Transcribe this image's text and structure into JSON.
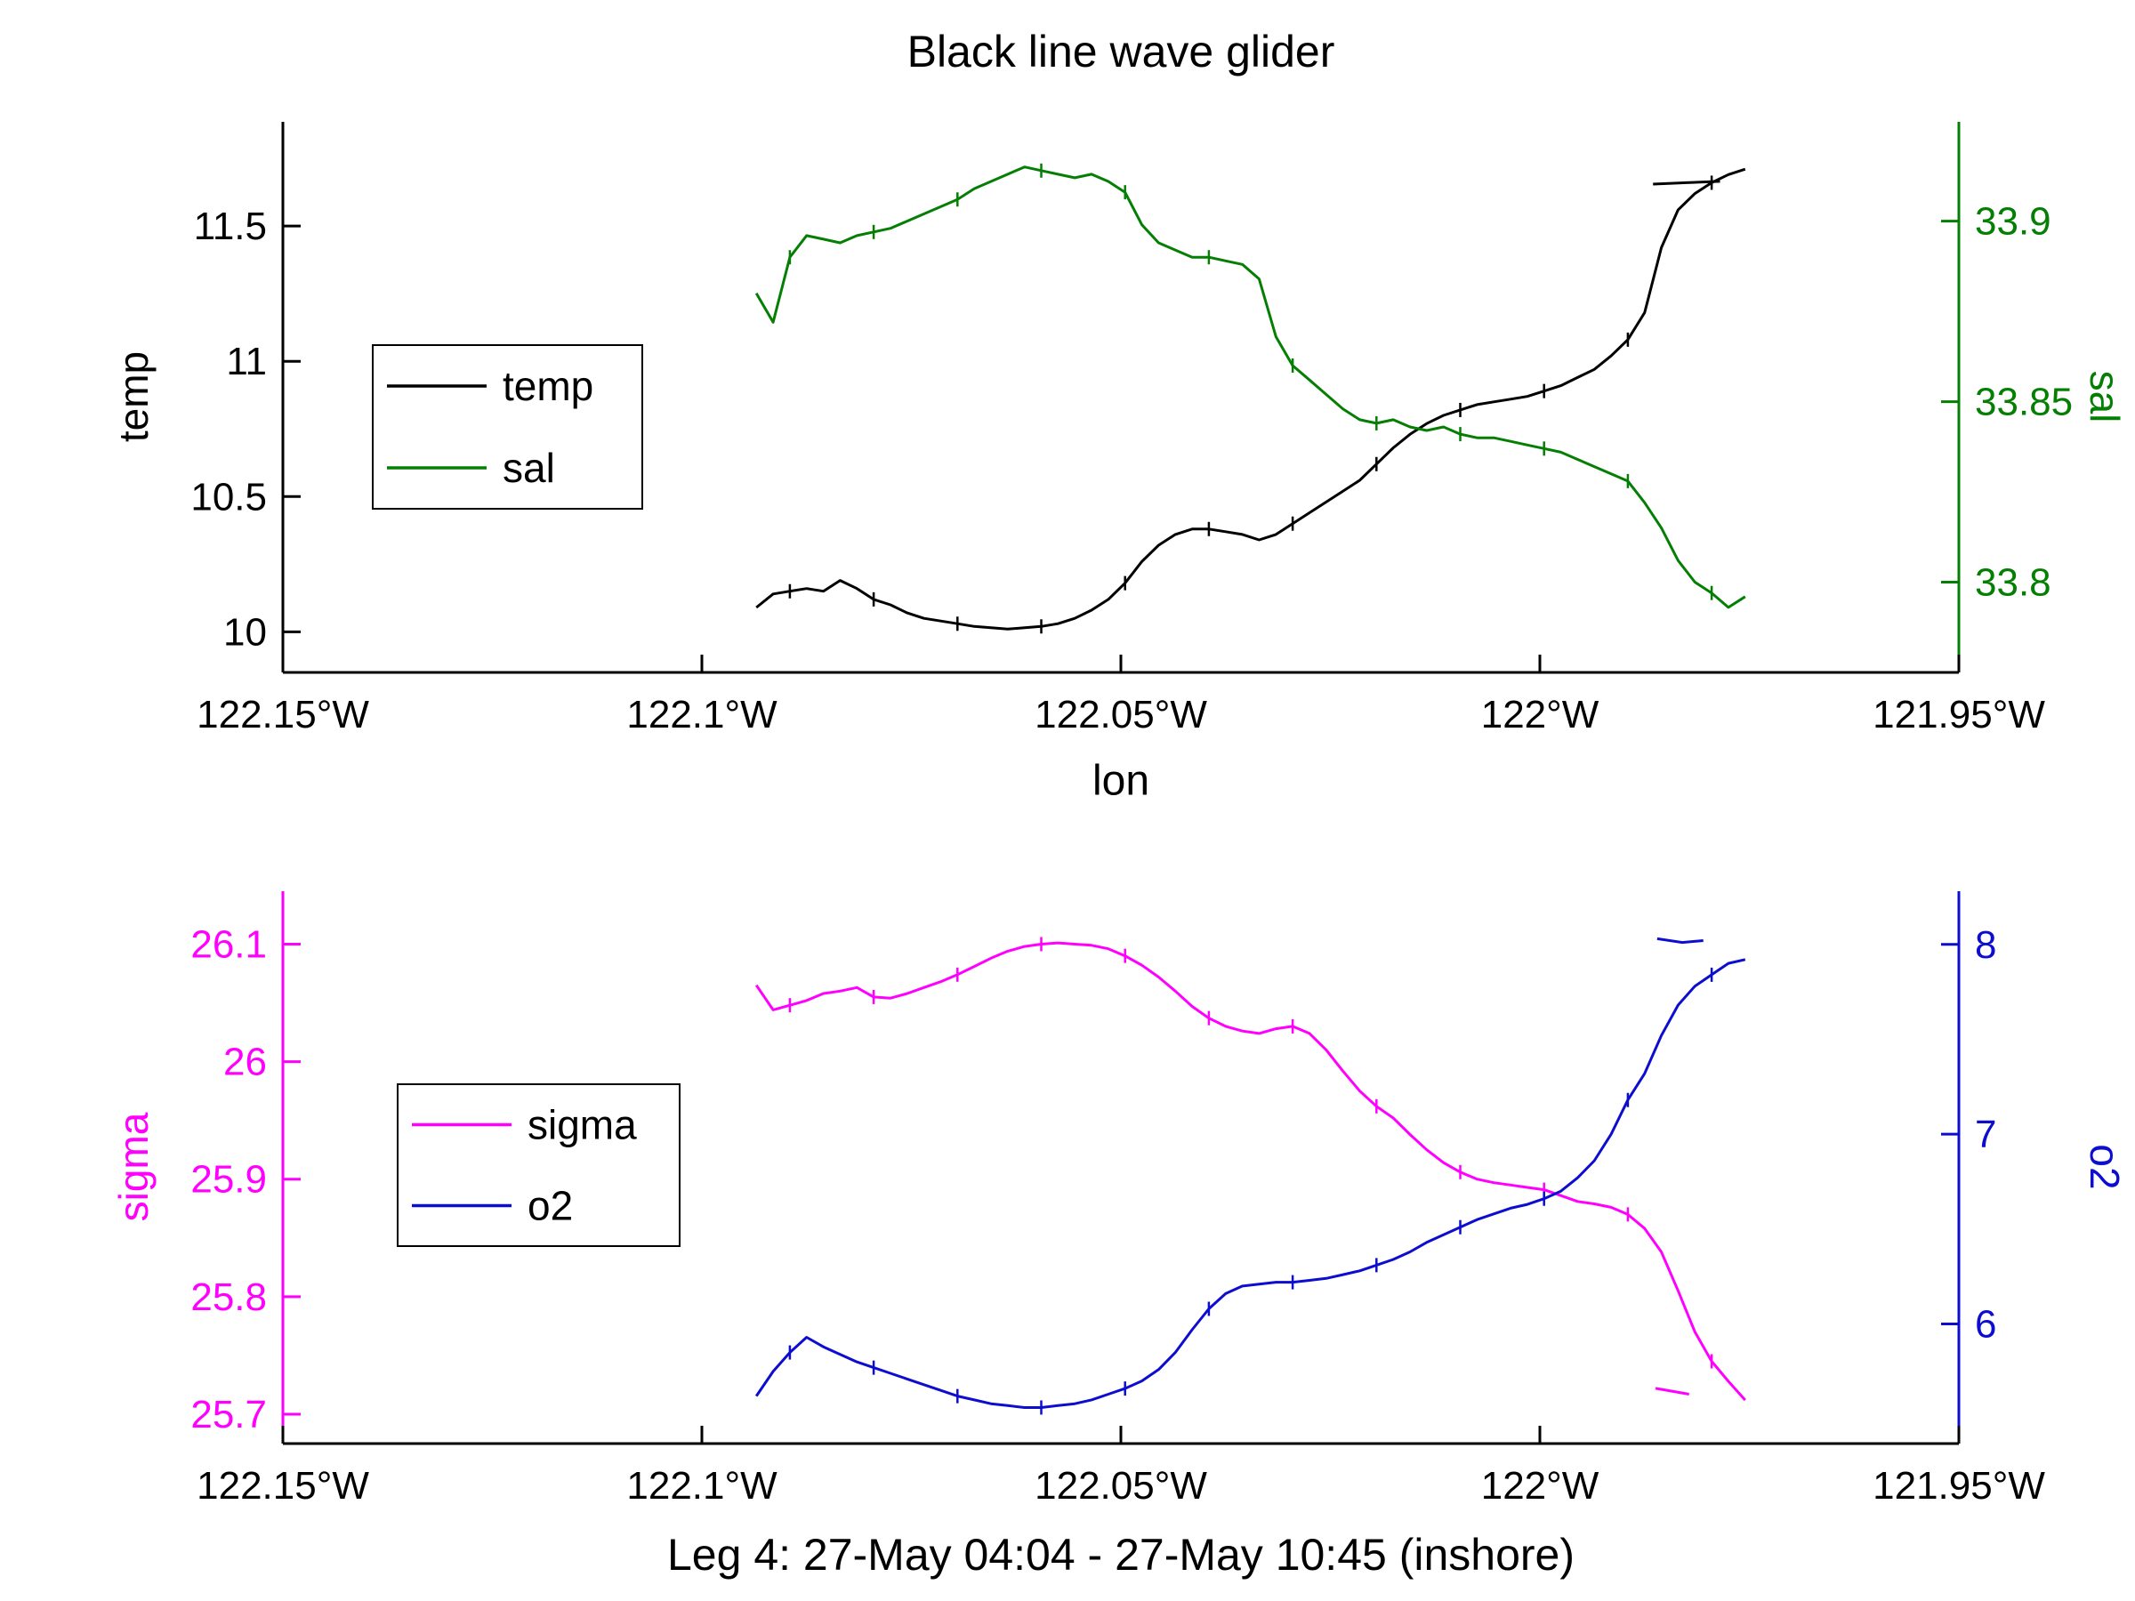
{
  "chart_data": [
    {
      "type": "line",
      "title": "Black line wave glider",
      "xlabel": "lon",
      "grid": false,
      "legend": {
        "position": "inside-upper-left",
        "entries": [
          {
            "label": "temp",
            "color": "#000000"
          },
          {
            "label": "sal",
            "color": "#047f04"
          }
        ]
      },
      "x_axis": {
        "min": -122.15,
        "max": -121.95,
        "ticks": [
          -122.15,
          -122.1,
          -122.05,
          -122,
          -121.95
        ],
        "tick_labels": [
          "122.15°W",
          "122.1°W",
          "122.05°W",
          "122°W",
          "121.95°W"
        ]
      },
      "y_left": {
        "label": "temp",
        "color": "#000000",
        "min": 9.85,
        "max": 11.885,
        "ticks": [
          10,
          10.5,
          11,
          11.5
        ],
        "tick_labels": [
          "10",
          "10.5",
          "11",
          "11.5"
        ]
      },
      "y_right": {
        "label": "sal",
        "color": "#047f04",
        "min": 33.775,
        "max": 33.9275,
        "ticks": [
          33.8,
          33.85,
          33.9
        ],
        "tick_labels": [
          "33.8",
          "33.85",
          "33.9"
        ]
      },
      "lon": [
        -122.0935,
        -122.0915,
        -122.0895,
        -122.0875,
        -122.0855,
        -122.0835,
        -122.0815,
        -122.0795,
        -122.0775,
        -122.0755,
        -122.0735,
        -122.0715,
        -122.0695,
        -122.0675,
        -122.0655,
        -122.0635,
        -122.0615,
        -122.0595,
        -122.0575,
        -122.0555,
        -122.0535,
        -122.0515,
        -122.0495,
        -122.0475,
        -122.0455,
        -122.0435,
        -122.0415,
        -122.0395,
        -122.0375,
        -122.0355,
        -122.0335,
        -122.0315,
        -122.0295,
        -122.0275,
        -122.0255,
        -122.0235,
        -122.0215,
        -122.0195,
        -122.0175,
        -122.0155,
        -122.0135,
        -122.0115,
        -122.0095,
        -122.0075,
        -122.0055,
        -122.0035,
        -122.0015,
        -121.9995,
        -121.9975,
        -121.9955,
        -121.9935,
        -121.9915,
        -121.9895,
        -121.9875,
        -121.9855,
        -121.9835,
        -121.9815,
        -121.9795,
        -121.9775,
        -121.9755
      ],
      "series": [
        {
          "name": "temp",
          "axis": "left",
          "color": "#000000",
          "values": [
            10.09,
            10.14,
            10.15,
            10.16,
            10.15,
            10.19,
            10.16,
            10.12,
            10.1,
            10.07,
            10.05,
            10.04,
            10.03,
            10.02,
            10.015,
            10.01,
            10.015,
            10.02,
            10.03,
            10.05,
            10.08,
            10.12,
            10.18,
            10.26,
            10.32,
            10.36,
            10.38,
            10.38,
            10.37,
            10.36,
            10.34,
            10.36,
            10.4,
            10.44,
            10.48,
            10.52,
            10.56,
            10.62,
            10.68,
            10.73,
            10.77,
            10.8,
            10.82,
            10.84,
            10.85,
            10.86,
            10.87,
            10.89,
            10.91,
            10.94,
            10.97,
            11.02,
            11.08,
            11.18,
            11.42,
            11.56,
            11.62,
            11.66,
            11.69,
            11.71
          ]
        },
        {
          "name": "sal",
          "axis": "right",
          "color": "#047f04",
          "values": [
            33.88,
            33.872,
            33.89,
            33.896,
            33.895,
            33.894,
            33.896,
            33.897,
            33.898,
            33.9,
            33.902,
            33.904,
            33.906,
            33.909,
            33.911,
            33.913,
            33.915,
            33.914,
            33.913,
            33.912,
            33.913,
            33.911,
            33.908,
            33.899,
            33.894,
            33.892,
            33.89,
            33.89,
            33.889,
            33.888,
            33.884,
            33.868,
            33.86,
            33.856,
            33.852,
            33.848,
            33.845,
            33.844,
            33.845,
            33.843,
            33.842,
            33.843,
            33.841,
            33.84,
            33.84,
            33.839,
            33.838,
            33.837,
            33.836,
            33.834,
            33.832,
            33.83,
            33.828,
            33.822,
            33.815,
            33.806,
            33.8,
            33.797,
            33.793,
            33.796
          ]
        }
      ],
      "extra_segments": [
        {
          "name": "temp-overlap",
          "axis": "left",
          "color": "#000000",
          "points": [
            [
              -121.9865,
              11.655
            ],
            [
              -121.9825,
              11.66
            ],
            [
              -121.9785,
              11.665
            ]
          ]
        }
      ]
    },
    {
      "type": "line",
      "title": "",
      "xlabel": "Leg 4: 27-May 04:04 - 27-May 10:45 (inshore)",
      "grid": false,
      "legend": {
        "position": "inside-middle-left",
        "entries": [
          {
            "label": "sigma",
            "color": "#ff00ff"
          },
          {
            "label": "o2",
            "color": "#0d0dd0"
          }
        ]
      },
      "x_axis": {
        "min": -122.15,
        "max": -121.95,
        "ticks": [
          -122.15,
          -122.1,
          -122.05,
          -122,
          -121.95
        ],
        "tick_labels": [
          "122.15°W",
          "122.1°W",
          "122.05°W",
          "122°W",
          "121.95°W"
        ]
      },
      "y_left": {
        "label": "sigma",
        "color": "#ff00ff",
        "min": 25.675,
        "max": 26.145,
        "ticks": [
          25.7,
          25.8,
          25.9,
          26,
          26.1
        ],
        "tick_labels": [
          "25.7",
          "25.8",
          "25.9",
          "26",
          "26.1"
        ]
      },
      "y_right": {
        "label": "o2",
        "color": "#0d0dd0",
        "min": 5.37,
        "max": 8.28,
        "ticks": [
          6,
          7,
          8
        ],
        "tick_labels": [
          "6",
          "7",
          "8"
        ]
      },
      "lon": [
        -122.0935,
        -122.0915,
        -122.0895,
        -122.0875,
        -122.0855,
        -122.0835,
        -122.0815,
        -122.0795,
        -122.0775,
        -122.0755,
        -122.0735,
        -122.0715,
        -122.0695,
        -122.0675,
        -122.0655,
        -122.0635,
        -122.0615,
        -122.0595,
        -122.0575,
        -122.0555,
        -122.0535,
        -122.0515,
        -122.0495,
        -122.0475,
        -122.0455,
        -122.0435,
        -122.0415,
        -122.0395,
        -122.0375,
        -122.0355,
        -122.0335,
        -122.0315,
        -122.0295,
        -122.0275,
        -122.0255,
        -122.0235,
        -122.0215,
        -122.0195,
        -122.0175,
        -122.0155,
        -122.0135,
        -122.0115,
        -122.0095,
        -122.0075,
        -122.0055,
        -122.0035,
        -122.0015,
        -121.9995,
        -121.9975,
        -121.9955,
        -121.9935,
        -121.9915,
        -121.9895,
        -121.9875,
        -121.9855,
        -121.9835,
        -121.9815,
        -121.9795,
        -121.9775,
        -121.9755
      ],
      "series": [
        {
          "name": "sigma",
          "axis": "left",
          "color": "#ff00ff",
          "values": [
            26.065,
            26.044,
            26.048,
            26.052,
            26.058,
            26.06,
            26.063,
            26.055,
            26.054,
            26.058,
            26.063,
            26.068,
            26.074,
            26.081,
            26.088,
            26.094,
            26.098,
            26.1,
            26.101,
            26.1,
            26.099,
            26.096,
            26.09,
            26.082,
            26.072,
            26.06,
            26.047,
            26.037,
            26.03,
            26.026,
            26.024,
            26.028,
            26.03,
            26.024,
            26.01,
            25.992,
            25.975,
            25.962,
            25.952,
            25.938,
            25.925,
            25.914,
            25.906,
            25.9,
            25.897,
            25.895,
            25.893,
            25.891,
            25.886,
            25.881,
            25.879,
            25.876,
            25.87,
            25.858,
            25.838,
            25.805,
            25.77,
            25.745,
            25.728,
            25.712
          ]
        },
        {
          "name": "o2",
          "axis": "right",
          "color": "#0d0dd0",
          "values": [
            5.62,
            5.75,
            5.85,
            5.93,
            5.88,
            5.84,
            5.8,
            5.77,
            5.74,
            5.71,
            5.68,
            5.65,
            5.62,
            5.6,
            5.58,
            5.57,
            5.56,
            5.56,
            5.57,
            5.58,
            5.6,
            5.63,
            5.66,
            5.7,
            5.76,
            5.85,
            5.97,
            6.08,
            6.16,
            6.2,
            6.21,
            6.22,
            6.22,
            6.23,
            6.24,
            6.26,
            6.28,
            6.31,
            6.34,
            6.38,
            6.43,
            6.47,
            6.51,
            6.55,
            6.58,
            6.61,
            6.63,
            6.66,
            6.7,
            6.77,
            6.86,
            7.0,
            7.18,
            7.32,
            7.52,
            7.68,
            7.78,
            7.84,
            7.9,
            7.92
          ]
        }
      ],
      "extra_segments": [
        {
          "name": "sigma-overlap",
          "axis": "left",
          "color": "#ff00ff",
          "points": [
            [
              -121.9862,
              25.722
            ],
            [
              -121.9822,
              25.717
            ]
          ]
        },
        {
          "name": "o2-overlap",
          "axis": "right",
          "color": "#0d0dd0",
          "points": [
            [
              -121.986,
              8.03
            ],
            [
              -121.983,
              8.01
            ],
            [
              -121.9805,
              8.02
            ]
          ]
        }
      ]
    }
  ]
}
